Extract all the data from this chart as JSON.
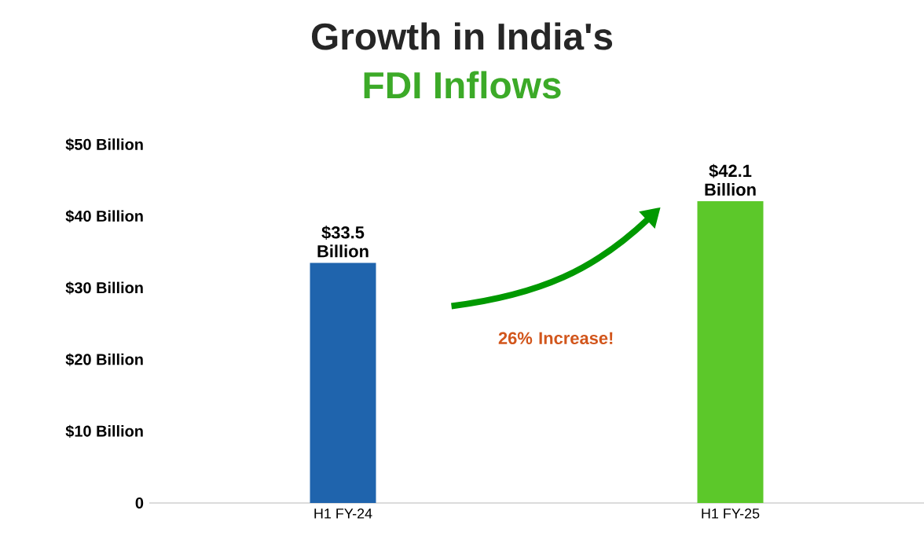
{
  "chart_data": {
    "type": "bar",
    "title": "Growth in India's",
    "subtitle": "FDI Inflows",
    "categories": [
      "H1 FY-24",
      "H1 FY-25"
    ],
    "values": [
      33.5,
      42.1
    ],
    "colors": [
      "#1f64ad",
      "#5cc82a"
    ],
    "value_labels": [
      "$33.5 Billion",
      "$42.1 Billion"
    ],
    "ylim": [
      0,
      50
    ],
    "yticks": [
      0,
      {
        "value": 10,
        "label": "$10 Billion"
      },
      {
        "value": 20,
        "label": "$20 Billion"
      },
      {
        "value": 30,
        "label": "$30 Billion"
      },
      {
        "value": 40,
        "label": "$40 Billion"
      },
      {
        "value": 50,
        "label": "$50 Billion"
      }
    ],
    "annotations": [
      "26% Increase!"
    ]
  }
}
